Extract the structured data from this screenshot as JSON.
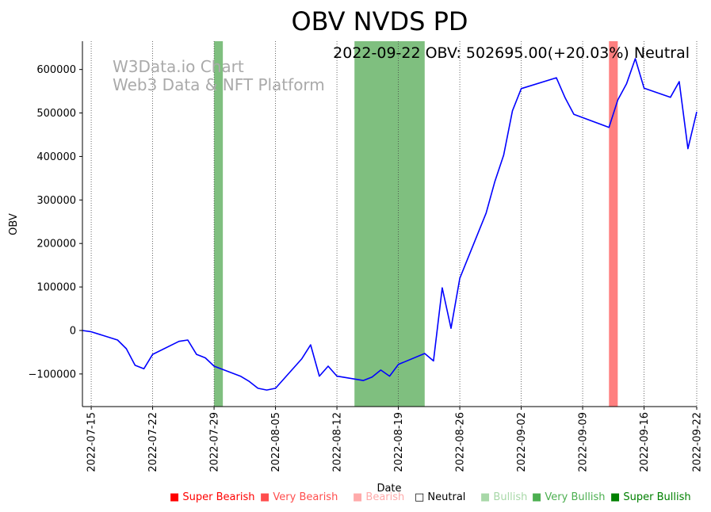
{
  "chart_data": {
    "type": "line",
    "title": "OBV NVDS PD",
    "annotation": "2022-09-22 OBV: 502695.00(+20.03%) Neutral",
    "watermark": [
      "W3Data.io Chart",
      "Web3 Data & NFT Platform"
    ],
    "xlabel": "Date",
    "ylabel": "OBV",
    "xlim": [
      "2022-07-14",
      "2022-09-22"
    ],
    "ylim": [
      -175000,
      665000
    ],
    "x_ticks": [
      "2022-07-15",
      "2022-07-22",
      "2022-07-29",
      "2022-08-05",
      "2022-08-12",
      "2022-08-19",
      "2022-08-26",
      "2022-09-02",
      "2022-09-09",
      "2022-09-16",
      "2022-09-22"
    ],
    "y_ticks": [
      -100000,
      0,
      100000,
      200000,
      300000,
      400000,
      500000,
      600000
    ],
    "y_tick_labels": [
      "−100000",
      "0",
      "100000",
      "200000",
      "300000",
      "400000",
      "500000",
      "600000"
    ],
    "series": [
      {
        "name": "OBV",
        "color": "#0000ff",
        "x": [
          "2022-07-14",
          "2022-07-15",
          "2022-07-18",
          "2022-07-19",
          "2022-07-20",
          "2022-07-21",
          "2022-07-22",
          "2022-07-25",
          "2022-07-26",
          "2022-07-27",
          "2022-07-28",
          "2022-07-29",
          "2022-08-01",
          "2022-08-02",
          "2022-08-03",
          "2022-08-04",
          "2022-08-05",
          "2022-08-08",
          "2022-08-09",
          "2022-08-10",
          "2022-08-11",
          "2022-08-12",
          "2022-08-15",
          "2022-08-16",
          "2022-08-17",
          "2022-08-18",
          "2022-08-19",
          "2022-08-22",
          "2022-08-23",
          "2022-08-24",
          "2022-08-25",
          "2022-08-26",
          "2022-08-29",
          "2022-08-30",
          "2022-08-31",
          "2022-09-01",
          "2022-09-02",
          "2022-09-06",
          "2022-09-07",
          "2022-09-08",
          "2022-09-12",
          "2022-09-13",
          "2022-09-14",
          "2022-09-15",
          "2022-09-16",
          "2022-09-19",
          "2022-09-20",
          "2022-09-21",
          "2022-09-22"
        ],
        "values": [
          0,
          -3000,
          -22000,
          -42000,
          -80000,
          -88000,
          -55000,
          -25000,
          -22000,
          -55000,
          -63000,
          -82000,
          -105000,
          -117000,
          -133000,
          -137000,
          -133000,
          -65000,
          -33000,
          -105000,
          -82000,
          -105000,
          -115000,
          -107000,
          -91000,
          -105000,
          -78000,
          -53000,
          -70000,
          98000,
          5000,
          120000,
          270000,
          343000,
          403000,
          505000,
          556000,
          581000,
          535000,
          497000,
          467000,
          530000,
          567000,
          625000,
          557000,
          536000,
          572000,
          418000,
          502695
        ]
      }
    ],
    "shaded_regions": [
      {
        "start": "2022-07-29",
        "end": "2022-07-30",
        "signal": "Very Bullish",
        "color": "#008000"
      },
      {
        "start": "2022-08-14",
        "end": "2022-08-22",
        "signal": "Very Bullish",
        "color": "#008000"
      },
      {
        "start": "2022-09-12",
        "end": "2022-09-13",
        "signal": "Super Bearish",
        "color": "#ff0000"
      }
    ],
    "legend": [
      {
        "label": "■ Super Bearish",
        "color": "#ff0000"
      },
      {
        "label": "■ Very Bearish",
        "color": "#ff4d4d"
      },
      {
        "label": "■ Bearish",
        "color": "#ffaaaa"
      },
      {
        "label": "□ Neutral",
        "color": "#000000"
      },
      {
        "label": "■ Bullish",
        "color": "#a8d8a8"
      },
      {
        "label": "■ Very Bullish",
        "color": "#4caf50"
      },
      {
        "label": "■ Super Bullish",
        "color": "#008000"
      }
    ]
  }
}
